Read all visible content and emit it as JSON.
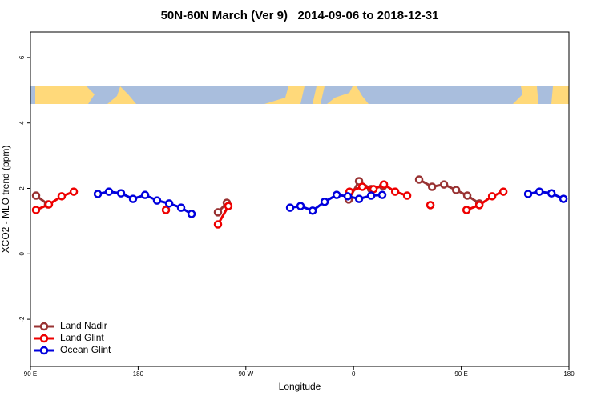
{
  "chart_data": {
    "type": "line",
    "title": "50N-60N March (Ver 9)   2014-09-06 to 2018-12-31",
    "x_label": "Longitude",
    "y_label": "XCO2 - MLO trend (ppm)",
    "xlim": [
      90,
      540
    ],
    "ylim": [
      -3.44,
      6.78
    ],
    "xticks": [
      {
        "value": 90,
        "label": "90 E"
      },
      180,
      {
        "value": 270,
        "label": "90 W"
      },
      {
        "value": 360,
        "label": "0"
      },
      {
        "value": 450,
        "label": "90 E"
      },
      {
        "value": 540,
        "label": "180"
      }
    ],
    "yticks": [
      -2,
      0,
      2,
      4,
      6
    ],
    "legend": "bottom-left",
    "series": [
      {
        "name": "Land Nadir",
        "color": "#993333",
        "x": [
          94.7,
          104.7,
          null,
          246.7,
          254.1,
          null,
          355.9,
          364.6,
          374.7,
          384.7,
          null,
          414.8,
          425.6,
          435.6,
          445.7,
          455.0,
          465.1
        ],
        "values": [
          1.78,
          1.51,
          null,
          1.27,
          1.56,
          null,
          1.66,
          2.22,
          1.98,
          2.07,
          null,
          2.27,
          2.05,
          2.12,
          1.95,
          1.78,
          1.54
        ]
      },
      {
        "name": "Land Glint",
        "color": "#ee0000",
        "x": [
          94.7,
          105.4,
          116.1,
          126.2,
          null,
          203.2,
          null,
          246.7,
          255.4,
          null,
          356.6,
          367.3,
          376.7,
          385.4,
          394.8,
          404.8,
          null,
          424.2,
          null,
          454.4,
          465.1,
          475.8,
          485.2
        ],
        "values": [
          1.34,
          1.51,
          1.76,
          1.9,
          null,
          1.34,
          null,
          0.9,
          1.46,
          null,
          1.9,
          2.05,
          1.98,
          2.12,
          1.9,
          1.78,
          null,
          1.49,
          null,
          1.34,
          1.49,
          1.76,
          1.9
        ]
      },
      {
        "name": "Ocean Glint",
        "color": "#0000dd",
        "x": [
          146.3,
          155.6,
          165.7,
          175.7,
          185.8,
          195.8,
          205.9,
          215.9,
          224.6,
          null,
          307.0,
          315.7,
          325.8,
          335.8,
          345.9,
          355.2,
          364.6,
          374.7,
          384.0,
          null,
          505.9,
          515.3,
          525.4,
          535.4
        ],
        "values": [
          1.83,
          1.9,
          1.85,
          1.68,
          1.8,
          1.63,
          1.54,
          1.41,
          1.22,
          null,
          1.41,
          1.46,
          1.32,
          1.59,
          1.8,
          1.76,
          1.68,
          1.78,
          1.8,
          null,
          1.83,
          1.9,
          1.85,
          1.68
        ]
      }
    ]
  }
}
